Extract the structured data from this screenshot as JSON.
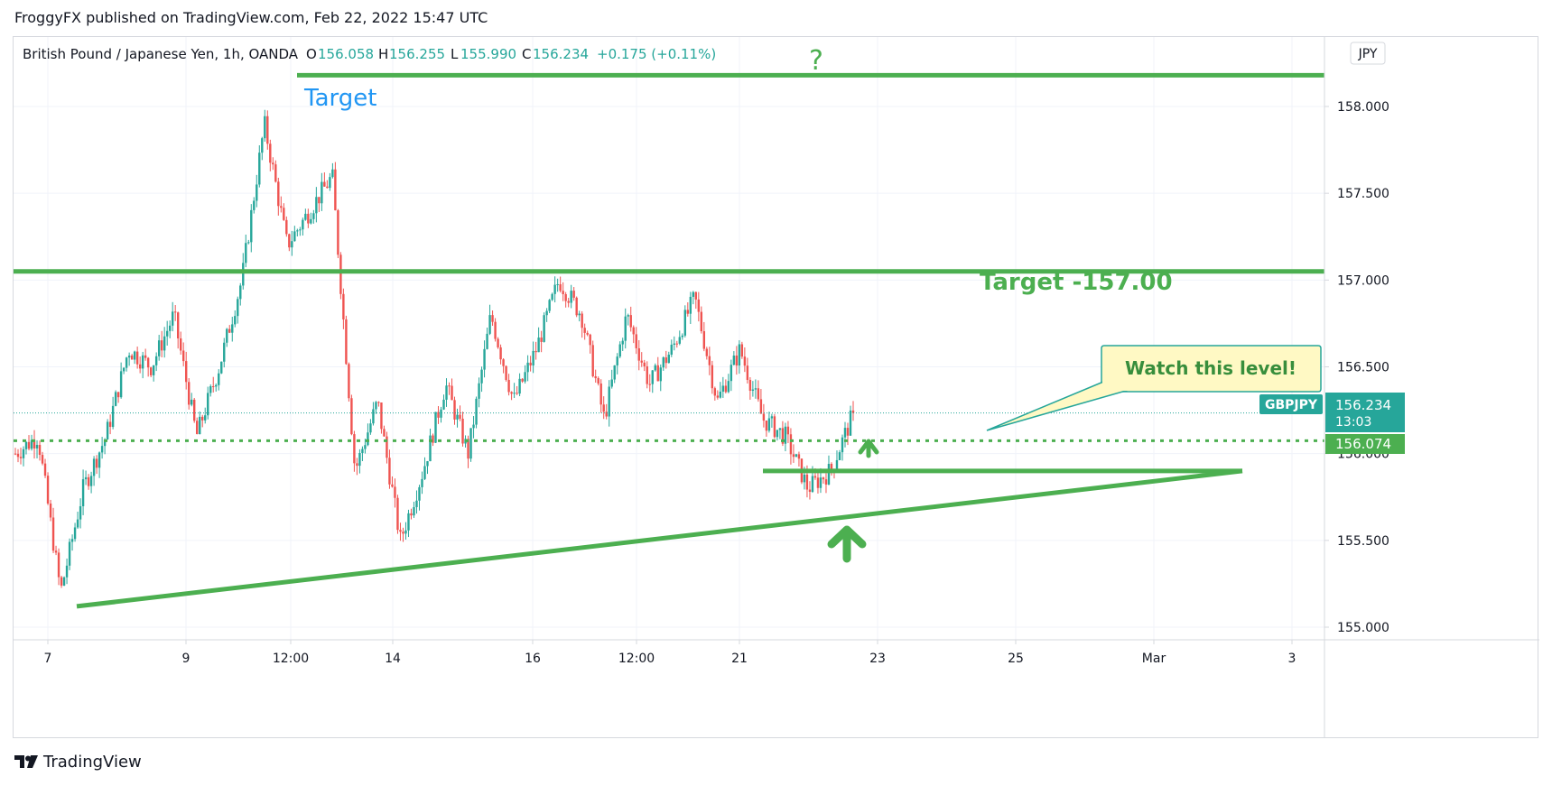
{
  "header": {
    "published_by": "FroggyFX published on TradingView.com, Feb 22, 2022 15:47 UTC"
  },
  "footer": {
    "logo_text": "TradingView"
  },
  "colors": {
    "up": "#26a69a",
    "down": "#ef5350",
    "annotation_green": "#4caf50",
    "annotation_blue": "#2196f3",
    "label_bg": "#26a69a"
  },
  "legend": {
    "symbol": "British Pound / Japanese Yen, 1h, OANDA",
    "o_label": "O",
    "o_value": "156.058",
    "h_label": "H",
    "h_value": "156.255",
    "l_label": "L",
    "l_value": "155.990",
    "c_label": "C",
    "c_value": "156.234",
    "change": "+0.175 (+0.11%)"
  },
  "currency_button": "JPY",
  "chart_data": {
    "type": "candlestick",
    "title": "British Pound / Japanese Yen, 1h, OANDA",
    "x_tick_labels": [
      "7",
      "9",
      "12:00",
      "14",
      "16",
      "12:00",
      "21",
      "23",
      "25",
      "Mar",
      "3"
    ],
    "y_tick_labels": [
      "158.000",
      "157.500",
      "157.000",
      "156.500",
      "156.000",
      "155.500",
      "155.000"
    ],
    "y_ticks": [
      158.0,
      157.5,
      157.0,
      156.5,
      156.0,
      155.5,
      155.0
    ],
    "ylim": [
      154.6,
      158.4
    ],
    "grid": true,
    "last_price": {
      "symbol": "GBPJPY",
      "price": "156.234",
      "countdown": "13:03"
    },
    "level_label": "156.074",
    "candle_anchor_closes": [
      156.0,
      156.1,
      155.2,
      155.8,
      156.1,
      156.6,
      156.5,
      156.8,
      156.1,
      156.5,
      157.0,
      157.9,
      157.2,
      157.4,
      157.6,
      155.9,
      156.3,
      155.5,
      155.9,
      156.4,
      156.0,
      156.8,
      156.3,
      156.6,
      157.0,
      156.8,
      156.2,
      156.8,
      156.4,
      156.6,
      156.9,
      156.3,
      156.6,
      156.2,
      156.1,
      155.8,
      155.9,
      156.23
    ],
    "annotations": {
      "question_mark": "?",
      "target_top": "Target",
      "target_level": "Target -157.00",
      "callout": "Watch this level!",
      "resistance_top_level": 158.18,
      "resistance_level": 157.05,
      "support_level": 155.9,
      "dotted_level": 156.074,
      "trendline_start": 155.12,
      "trendline_end": 155.9
    }
  }
}
